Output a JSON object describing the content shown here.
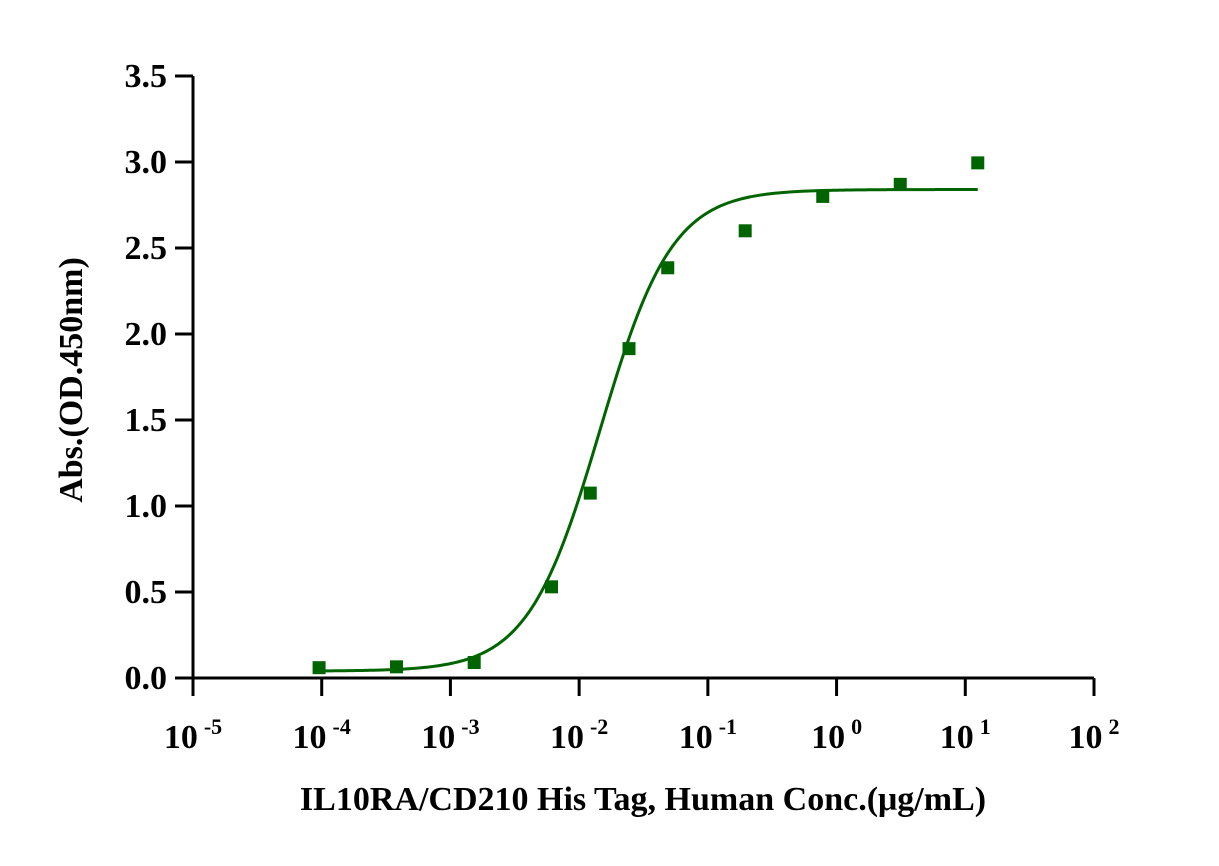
{
  "chart_data": {
    "type": "scatter",
    "title": "",
    "xlabel": "IL10RA/CD210 His Tag, Human  Conc.(μg/mL)",
    "ylabel": "Abs.(OD.450nm)",
    "x_scale": "log",
    "xlim": [
      1e-05,
      100
    ],
    "ylim": [
      0,
      3.5
    ],
    "grid": false,
    "legend": "none",
    "x_ticks": [
      {
        "base": "10",
        "exp": "-5",
        "value": 1e-05
      },
      {
        "base": "10",
        "exp": "-4",
        "value": 0.0001
      },
      {
        "base": "10",
        "exp": "-3",
        "value": 0.001
      },
      {
        "base": "10",
        "exp": "-2",
        "value": 0.01
      },
      {
        "base": "10",
        "exp": "-1",
        "value": 0.1
      },
      {
        "base": "10",
        "exp": "0",
        "value": 1
      },
      {
        "base": "10",
        "exp": "1",
        "value": 10
      },
      {
        "base": "10",
        "exp": "2",
        "value": 100
      }
    ],
    "y_ticks": [
      "0.0",
      "0.5",
      "1.0",
      "1.5",
      "2.0",
      "2.5",
      "3.0",
      "3.5"
    ],
    "series": [
      {
        "color": "#006400",
        "marker": "square",
        "points": [
          {
            "x": 9.54e-05,
            "y": 0.06
          },
          {
            "x": 0.000381,
            "y": 0.065
          },
          {
            "x": 0.00153,
            "y": 0.09
          },
          {
            "x": 0.0061,
            "y": 0.53
          },
          {
            "x": 0.0122,
            "y": 1.075
          },
          {
            "x": 0.0244,
            "y": 1.915
          },
          {
            "x": 0.0488,
            "y": 2.385
          },
          {
            "x": 0.195,
            "y": 2.6
          },
          {
            "x": 0.781,
            "y": 2.8
          },
          {
            "x": 3.125,
            "y": 2.87
          },
          {
            "x": 12.5,
            "y": 2.995
          }
        ],
        "fit": {
          "model": "4PL",
          "bottom": 0.04,
          "top": 2.84,
          "ec50": 0.0145,
          "hill": 1.55
        }
      }
    ]
  }
}
